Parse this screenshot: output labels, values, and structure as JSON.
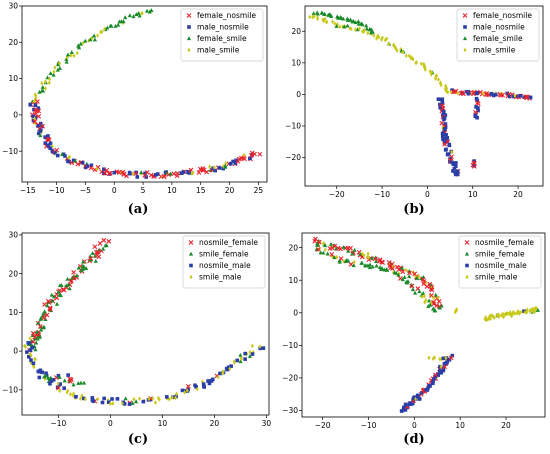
{
  "chart_data": [
    {
      "type": "scatter",
      "panel_label": "(a)",
      "legend_position": "top-right",
      "xlim": [
        -16,
        26.5
      ],
      "ylim": [
        -18.5,
        30
      ],
      "xticks": [
        -15,
        -10,
        -5,
        0,
        5,
        10,
        15,
        20,
        25
      ],
      "yticks": [
        -10,
        0,
        10,
        20,
        30
      ],
      "series": [
        {
          "name": "female_nosmile",
          "color": "#e8212b",
          "marker": "x"
        },
        {
          "name": "male_nosmile",
          "color": "#2b3ea8",
          "marker": "square"
        },
        {
          "name": "female_smile",
          "color": "#1a8a2a",
          "marker": "triangle"
        },
        {
          "name": "male_smile",
          "color": "#c8c818",
          "marker": "diamond"
        }
      ],
      "trails": [
        {
          "points": [
            [
              -14,
              3
            ],
            [
              -13,
              6
            ],
            [
              -11,
              11
            ],
            [
              -8,
              16
            ],
            [
              -5,
              20
            ],
            [
              -1,
              24
            ],
            [
              3,
              27
            ],
            [
              7,
              28.5
            ]
          ],
          "weights": [
            0,
            0,
            0.6,
            0.4
          ],
          "n": 70,
          "spread": 0.4
        },
        {
          "points": [
            [
              -14,
              4
            ],
            [
              -13.5,
              0
            ],
            [
              -13,
              -4
            ],
            [
              -11,
              -9
            ],
            [
              -7,
              -13
            ],
            [
              -2,
              -15.5
            ],
            [
              3,
              -16.5
            ],
            [
              8,
              -16.5
            ],
            [
              13,
              -16
            ],
            [
              18,
              -14.5
            ],
            [
              22,
              -12.5
            ],
            [
              25,
              -10.5
            ]
          ],
          "weights": [
            0.45,
            0.4,
            0.05,
            0.1
          ],
          "n": 170,
          "spread": 0.5
        }
      ]
    },
    {
      "type": "scatter",
      "panel_label": "(b)",
      "legend_position": "top-right",
      "xlim": [
        -27,
        25.5
      ],
      "ylim": [
        -29,
        28
      ],
      "xticks": [
        -20,
        -10,
        0,
        10,
        20
      ],
      "yticks": [
        -20,
        -10,
        0,
        10,
        20
      ],
      "series": [
        {
          "name": "female_nosmile",
          "color": "#e8212b",
          "marker": "x"
        },
        {
          "name": "male_nosmile",
          "color": "#2b3ea8",
          "marker": "square"
        },
        {
          "name": "female_smile",
          "color": "#1a8a2a",
          "marker": "triangle"
        },
        {
          "name": "male_smile",
          "color": "#c8c818",
          "marker": "diamond"
        }
      ],
      "trails": [
        {
          "points": [
            [
              -25,
              26
            ],
            [
              -20,
              24.5
            ],
            [
              -15,
              22.5
            ],
            [
              -12,
              20
            ]
          ],
          "weights": [
            0,
            0,
            1,
            0
          ],
          "n": 35,
          "spread": 0.3
        },
        {
          "points": [
            [
              -26,
              25
            ],
            [
              -20,
              22
            ],
            [
              -14,
              20
            ],
            [
              -9,
              17
            ],
            [
              -5,
              13
            ],
            [
              -1,
              9
            ],
            [
              2,
              5
            ],
            [
              4,
              2
            ],
            [
              5,
              0.5
            ]
          ],
          "weights": [
            0,
            0,
            0.1,
            0.9
          ],
          "n": 80,
          "spread": 0.4
        },
        {
          "points": [
            [
              5,
              1
            ],
            [
              8,
              0.5
            ],
            [
              11,
              0.5
            ],
            [
              14,
              0
            ],
            [
              17,
              0
            ],
            [
              20,
              -0.5
            ],
            [
              23,
              -1
            ]
          ],
          "weights": [
            0.55,
            0.3,
            0,
            0.15
          ],
          "n": 55,
          "spread": 0.3
        },
        {
          "points": [
            [
              3,
              -1
            ],
            [
              3.3,
              -5
            ],
            [
              3.5,
              -10
            ],
            [
              4,
              -15
            ],
            [
              5,
              -19
            ],
            [
              6,
              -23
            ],
            [
              6.5,
              -26
            ]
          ],
          "weights": [
            0.2,
            0.75,
            0,
            0.05
          ],
          "n": 65,
          "spread": 0.45
        },
        {
          "points": [
            [
              11,
              -1
            ],
            [
              11,
              -4
            ],
            [
              10.7,
              -8
            ]
          ],
          "weights": [
            0.3,
            0.7,
            0,
            0
          ],
          "n": 12,
          "spread": 0.2
        },
        {
          "points": [
            [
              10,
              -21
            ],
            [
              10.5,
              -23
            ]
          ],
          "weights": [
            0.3,
            0.7,
            0,
            0
          ],
          "n": 6,
          "spread": 0.2
        }
      ]
    },
    {
      "type": "scatter",
      "panel_label": "(c)",
      "legend_position": "top-right",
      "xlim": [
        -17,
        30.5
      ],
      "ylim": [
        -16.5,
        30.5
      ],
      "xticks": [
        -10,
        0,
        10,
        20,
        30
      ],
      "yticks": [
        -10,
        0,
        10,
        20,
        30
      ],
      "series": [
        {
          "name": "nosmile_female",
          "color": "#e8212b",
          "marker": "x"
        },
        {
          "name": "smile_female",
          "color": "#1a8a2a",
          "marker": "triangle"
        },
        {
          "name": "nosmile_male",
          "color": "#2b3ea8",
          "marker": "square"
        },
        {
          "name": "smile_male",
          "color": "#c8c818",
          "marker": "diamond"
        }
      ],
      "trails": [
        {
          "points": [
            [
              -15,
              0
            ],
            [
              -14,
              5
            ],
            [
              -12,
              11
            ],
            [
              -9,
              16
            ],
            [
              -6,
              21
            ],
            [
              -3,
              25
            ],
            [
              -1,
              28
            ]
          ],
          "weights": [
            0.45,
            0.55,
            0,
            0
          ],
          "n": 110,
          "spread": 0.7
        },
        {
          "points": [
            [
              -16,
              3
            ],
            [
              -15,
              -2
            ],
            [
              -13,
              -6
            ],
            [
              -10,
              -9
            ],
            [
              -6,
              -12
            ],
            [
              0,
              -13
            ],
            [
              7,
              -13
            ],
            [
              12,
              -12
            ],
            [
              17,
              -9
            ],
            [
              22,
              -5
            ],
            [
              26,
              -1
            ],
            [
              29,
              1.5
            ]
          ],
          "weights": [
            0.05,
            0.05,
            0.5,
            0.4
          ],
          "n": 140,
          "spread": 0.6
        },
        {
          "points": [
            [
              -13,
              -6
            ],
            [
              -9,
              -7
            ],
            [
              -5,
              -8
            ]
          ],
          "weights": [
            0.3,
            0.5,
            0.2,
            0
          ],
          "n": 18,
          "spread": 0.8
        }
      ]
    },
    {
      "type": "scatter",
      "panel_label": "(d)",
      "legend_position": "top-right",
      "xlim": [
        -24.5,
        28.5
      ],
      "ylim": [
        -32,
        24.5
      ],
      "xticks": [
        -20,
        -10,
        0,
        10,
        20
      ],
      "yticks": [
        -30,
        -20,
        -10,
        0,
        10,
        20
      ],
      "series": [
        {
          "name": "nosmile_female",
          "color": "#e8212b",
          "marker": "x"
        },
        {
          "name": "smile_female",
          "color": "#1a8a2a",
          "marker": "triangle"
        },
        {
          "name": "nosmile_male",
          "color": "#2b3ea8",
          "marker": "square"
        },
        {
          "name": "smile_male",
          "color": "#c8c818",
          "marker": "diamond"
        }
      ],
      "trails": [
        {
          "points": [
            [
              -22,
              22
            ],
            [
              -18,
              20
            ],
            [
              -14,
              19
            ],
            [
              -10,
              17
            ],
            [
              -6,
              15
            ],
            [
              -2,
              13
            ],
            [
              2,
              10
            ],
            [
              4,
              7
            ],
            [
              5,
              3
            ],
            [
              6,
              1
            ]
          ],
          "weights": [
            0.5,
            0.3,
            0,
            0.2
          ],
          "n": 100,
          "spread": 0.6
        },
        {
          "points": [
            [
              -22,
              21
            ],
            [
              -19,
              18
            ],
            [
              -16,
              16
            ],
            [
              -12,
              15
            ],
            [
              -8,
              14
            ],
            [
              -4,
              12
            ],
            [
              -1,
              9
            ],
            [
              1,
              6
            ],
            [
              3,
              3
            ],
            [
              5,
              0
            ]
          ],
          "weights": [
            0.1,
            0.7,
            0,
            0.2
          ],
          "n": 70,
          "spread": 0.5
        },
        {
          "points": [
            [
              15,
              -2
            ],
            [
              18,
              -1
            ],
            [
              21,
              -0.5
            ],
            [
              24,
              0.5
            ],
            [
              27,
              1
            ]
          ],
          "weights": [
            0,
            0.05,
            0.05,
            0.9
          ],
          "n": 55,
          "spread": 0.4
        },
        {
          "points": [
            [
              9,
              0
            ],
            [
              9,
              1
            ]
          ],
          "weights": [
            0,
            0,
            0,
            1
          ],
          "n": 4,
          "spread": 0.2
        },
        {
          "points": [
            [
              -3,
              -30
            ],
            [
              0,
              -27
            ],
            [
              3,
              -23
            ],
            [
              5,
              -19
            ],
            [
              7,
              -15
            ],
            [
              8,
              -13.5
            ]
          ],
          "weights": [
            0.3,
            0,
            0.65,
            0.05
          ],
          "n": 65,
          "spread": 0.45
        },
        {
          "points": [
            [
              3,
              -14
            ],
            [
              8,
              -14
            ]
          ],
          "weights": [
            0.2,
            0,
            0.2,
            0.6
          ],
          "n": 8,
          "spread": 0.2
        }
      ]
    }
  ]
}
